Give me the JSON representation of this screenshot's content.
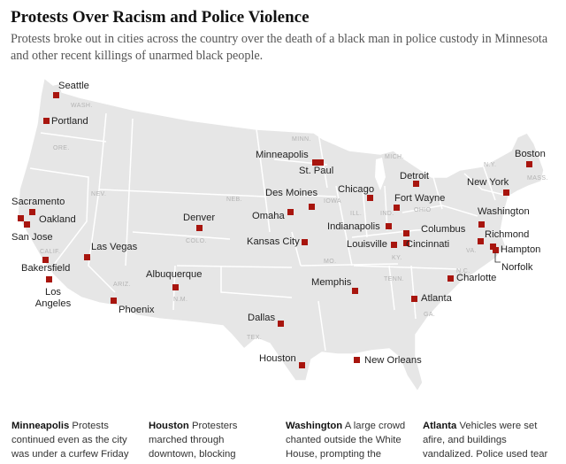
{
  "title": "Protests Over Racism and Police Violence",
  "subtitle": "Protests broke out in cities across the country over the death of a black man in police custody in Minnesota and other recent killings of unarmed black people.",
  "colors": {
    "land": "#e6e6e6",
    "border": "#ffffff",
    "marker": "#a8150e",
    "background": "#ffffff"
  },
  "states": [
    "WASH.",
    "ORE.",
    "CALIF.",
    "NEV.",
    "ARIZ.",
    "COLO.",
    "N.M.",
    "NEB.",
    "MINN.",
    "IOWA",
    "MO.",
    "TEX.",
    "MICH.",
    "ILL.",
    "IND.",
    "OHIO",
    "KY.",
    "TENN.",
    "GA.",
    "VA.",
    "N.C.",
    "N.Y.",
    "MASS."
  ],
  "cities": [
    "Seattle",
    "Portland",
    "Sacramento",
    "Oakland",
    "San Jose",
    "Bakersfield",
    "Los Angeles",
    "Las Vegas",
    "Phoenix",
    "Albuquerque",
    "Denver",
    "Omaha",
    "Des Moines",
    "Minneapolis",
    "St. Paul",
    "Kansas City",
    "Dallas",
    "Houston",
    "Chicago",
    "Detroit",
    "Indianapolis",
    "Fort Wayne",
    "Columbus",
    "Cincinnati",
    "Louisville",
    "Memphis",
    "New Orleans",
    "Atlanta",
    "Charlotte",
    "Washington",
    "Richmond",
    "Hampton",
    "Norfolk",
    "New York",
    "Boston"
  ],
  "blurbs": [
    {
      "city": "Minneapolis",
      "text": "Protests continued even as the city was under a curfew Friday"
    },
    {
      "city": "Houston",
      "text": "Protesters marched through downtown, blocking"
    },
    {
      "city": "Washington",
      "text": "A large crowd chanted outside the White House, prompting the"
    },
    {
      "city": "Atlanta",
      "text": "Vehicles were set afire, and buildings vandalized. Police used tear"
    }
  ]
}
